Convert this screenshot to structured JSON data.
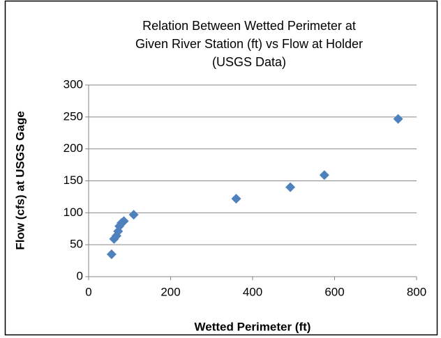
{
  "chart_data": {
    "type": "scatter",
    "title": [
      "Relation Between Wetted Perimeter at",
      "Given River Station (ft) vs Flow at Holder",
      "(USGS Data)"
    ],
    "x_label": "Wetted Perimeter (ft)",
    "y_label": "Flow (cfs) at USGS Gage",
    "series": [
      {
        "name": "Flow",
        "color": "#4f81bd",
        "x": [
          56,
          62,
          68,
          72,
          75,
          80,
          86,
          110,
          360,
          492,
          575,
          755
        ],
        "values": [
          35,
          59,
          64,
          71,
          79,
          84,
          87,
          97,
          122,
          140,
          159,
          247
        ]
      }
    ],
    "xlim": [
      0,
      800
    ],
    "xticks": [
      0,
      200,
      400,
      600,
      800
    ],
    "ylim": [
      0,
      300
    ],
    "yticks": [
      0,
      50,
      100,
      150,
      200,
      250,
      300
    ],
    "grid": true
  }
}
